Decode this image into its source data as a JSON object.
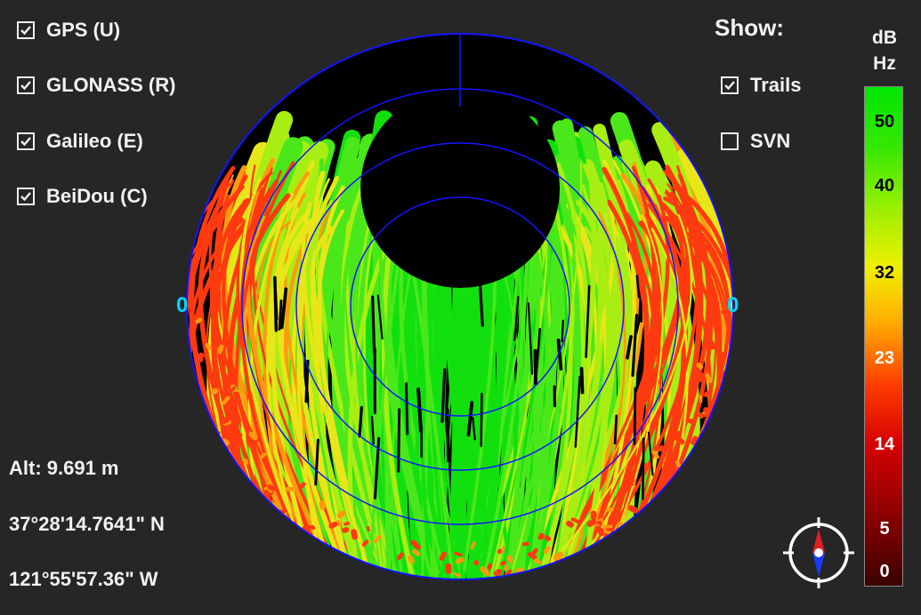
{
  "constellations": [
    {
      "label": "GPS (U)",
      "checked": true
    },
    {
      "label": "GLONASS (R)",
      "checked": true
    },
    {
      "label": "Galileo (E)",
      "checked": true
    },
    {
      "label": "BeiDou (C)",
      "checked": true
    }
  ],
  "show": {
    "label": "Show:",
    "options": [
      {
        "label": "Trails",
        "checked": true
      },
      {
        "label": "SVN",
        "checked": false
      }
    ]
  },
  "position": {
    "altitude": "Alt: 9.691 m",
    "latitude": "37°28'14.7641\" N",
    "longitude": "121°55'57.36\" W"
  },
  "skyplot": {
    "left_horizon_label": "0",
    "right_horizon_label": "0"
  },
  "scale": {
    "unit_line1": "dB",
    "unit_line2": "Hz",
    "ticks": [
      "50",
      "40",
      "32",
      "23",
      "14",
      "5",
      "0"
    ]
  },
  "colors": {
    "background": "#262626",
    "grid": "#1414ff",
    "label_accent": "#00d8ff",
    "snr_high": "#00e600",
    "snr_mid": "#f0f000",
    "snr_low": "#ff3a00",
    "snr_min": "#3c0000"
  },
  "icons": {
    "checkbox_checked": "checkmark-icon",
    "compass": "compass-icon"
  }
}
